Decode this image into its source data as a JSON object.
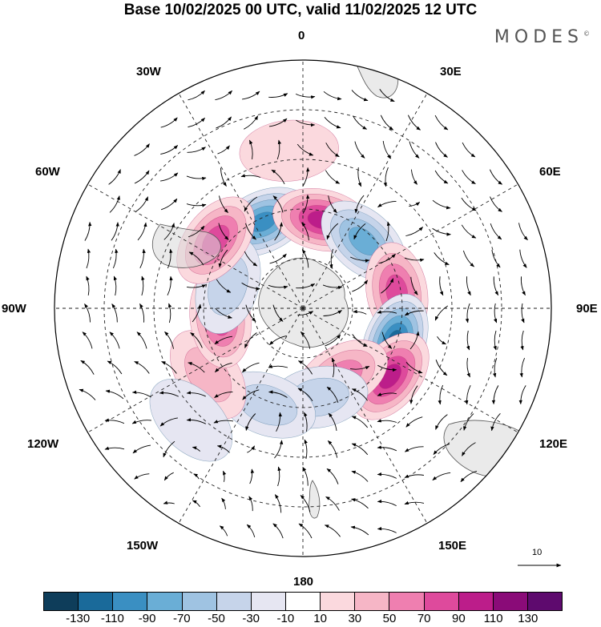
{
  "title": "Base 10/02/2025 00 UTC, valid 11/02/2025 12 UTC",
  "brand": "MODES",
  "brand_mark": "©",
  "longitude_labels": {
    "lon_0": "0",
    "lon_30e": "30E",
    "lon_60e": "60E",
    "lon_90e": "90E",
    "lon_120e": "120E",
    "lon_150e": "150E",
    "lon_180": "180",
    "lon_150w": "150W",
    "lon_120w": "120W",
    "lon_90w": "90W",
    "lon_60w": "60W",
    "lon_30w": "30W"
  },
  "reference_vector": {
    "label": "10"
  },
  "colorbar": {
    "colors": [
      "#0e3d5a",
      "#1a6a9a",
      "#3a8fc2",
      "#6aaed6",
      "#9fc3e2",
      "#c6d4ea",
      "#e6e6f2",
      "#ffffff",
      "#fbd9de",
      "#f6b6c6",
      "#ef7fb0",
      "#de4a9c",
      "#bc1d8a",
      "#8a0b78",
      "#5e0a6e"
    ],
    "tick_labels": [
      "-130",
      "-110",
      "-90",
      "-70",
      "-50",
      "-30",
      "-10",
      "10",
      "30",
      "50",
      "70",
      "90",
      "110",
      "130"
    ]
  },
  "anomaly_centers": [
    {
      "name": "neg-30w-cap",
      "lon": -25,
      "lat": -48,
      "value": -110
    },
    {
      "name": "pos-15e",
      "lon": 12,
      "lat": -50,
      "value": 100
    },
    {
      "name": "neg-40e",
      "lon": 42,
      "lat": -50,
      "value": -95
    },
    {
      "name": "pos-80e",
      "lon": 80,
      "lat": -48,
      "value": 95
    },
    {
      "name": "neg-110e",
      "lon": 110,
      "lat": -47,
      "value": -125
    },
    {
      "name": "pos-130e",
      "lon": 128,
      "lat": -42,
      "value": 110
    },
    {
      "name": "pos-145e",
      "lon": 150,
      "lat": -55,
      "value": 65
    },
    {
      "name": "neg-165e",
      "lon": 170,
      "lat": -50,
      "value": -45
    },
    {
      "name": "neg-150w",
      "lon": -160,
      "lat": -45,
      "value": -50
    },
    {
      "name": "pos-120w",
      "lon": -125,
      "lat": -40,
      "value": 40
    },
    {
      "name": "pos-100w",
      "lon": -97,
      "lat": -53,
      "value": 85
    },
    {
      "name": "neg-75w",
      "lon": -73,
      "lat": -55,
      "value": -55
    },
    {
      "name": "pos-55w",
      "lon": -52,
      "lat": -42,
      "value": 80
    },
    {
      "name": "pos-5w",
      "lon": -5,
      "lat": -25,
      "value": 25
    },
    {
      "name": "neg-130w",
      "lon": -135,
      "lat": -25,
      "value": -35
    }
  ]
}
